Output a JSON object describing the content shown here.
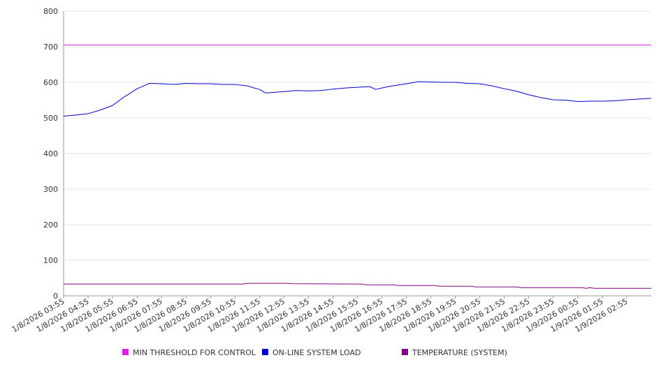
{
  "chart_data": {
    "type": "line",
    "ylim": [
      0,
      800
    ],
    "y_ticks": [
      0,
      100,
      200,
      300,
      400,
      500,
      600,
      700,
      800
    ],
    "x_range": [
      "1/8/2026 03:55",
      "1/9/2026 03:55"
    ],
    "x_tick_labels": [
      "1/8/2026 03:55",
      "1/8/2026 04:55",
      "1/8/2026 05:55",
      "1/8/2026 06:55",
      "1/8/2026 07:55",
      "1/8/2026 08:55",
      "1/8/2026 09:55",
      "1/8/2026 10:55",
      "1/8/2026 11:55",
      "1/8/2026 12:55",
      "1/8/2026 13:55",
      "1/8/2026 14:55",
      "1/8/2026 15:55",
      "1/8/2026 16:55",
      "1/8/2026 17:55",
      "1/8/2026 18:55",
      "1/8/2026 19:55",
      "1/8/2026 20:55",
      "1/8/2026 21:55",
      "1/8/2026 22:55",
      "1/8/2026 23:55",
      "1/9/2026 00:55",
      "1/9/2026 01:55",
      "1/9/2026 02:55"
    ],
    "grid": true,
    "legend_position": "bottom",
    "series": [
      {
        "name": "MIN THRESHOLD FOR CONTROL",
        "color": "#E020E0",
        "points": [
          [
            "1/8/2026 03:55",
            705
          ],
          [
            "1/9/2026 03:55",
            705
          ]
        ]
      },
      {
        "name": "ON-LINE SYSTEM LOAD",
        "color": "#0000CC",
        "points": [
          [
            "1/8/2026 03:55",
            505
          ],
          [
            "1/8/2026 04:25",
            508
          ],
          [
            "1/8/2026 04:55",
            512
          ],
          [
            "1/8/2026 05:25",
            522
          ],
          [
            "1/8/2026 05:55",
            535
          ],
          [
            "1/8/2026 06:25",
            560
          ],
          [
            "1/8/2026 06:55",
            582
          ],
          [
            "1/8/2026 07:25",
            597
          ],
          [
            "1/8/2026 07:55",
            596
          ],
          [
            "1/8/2026 08:25",
            594
          ],
          [
            "1/8/2026 08:55",
            597
          ],
          [
            "1/8/2026 09:25",
            596
          ],
          [
            "1/8/2026 09:55",
            596
          ],
          [
            "1/8/2026 10:25",
            594
          ],
          [
            "1/8/2026 10:55",
            594
          ],
          [
            "1/8/2026 11:25",
            590
          ],
          [
            "1/8/2026 11:55",
            580
          ],
          [
            "1/8/2026 12:10",
            570
          ],
          [
            "1/8/2026 12:55",
            574
          ],
          [
            "1/8/2026 13:25",
            577
          ],
          [
            "1/8/2026 13:55",
            576
          ],
          [
            "1/8/2026 14:25",
            577
          ],
          [
            "1/8/2026 14:55",
            581
          ],
          [
            "1/8/2026 15:25",
            584
          ],
          [
            "1/8/2026 15:55",
            586
          ],
          [
            "1/8/2026 16:25",
            588
          ],
          [
            "1/8/2026 16:40",
            580
          ],
          [
            "1/8/2026 17:10",
            588
          ],
          [
            "1/8/2026 17:55",
            596
          ],
          [
            "1/8/2026 18:25",
            602
          ],
          [
            "1/8/2026 18:55",
            601
          ],
          [
            "1/8/2026 19:25",
            600
          ],
          [
            "1/8/2026 19:55",
            600
          ],
          [
            "1/8/2026 20:25",
            597
          ],
          [
            "1/8/2026 20:55",
            596
          ],
          [
            "1/8/2026 21:25",
            590
          ],
          [
            "1/8/2026 21:55",
            582
          ],
          [
            "1/8/2026 22:25",
            575
          ],
          [
            "1/8/2026 22:55",
            565
          ],
          [
            "1/8/2026 23:25",
            557
          ],
          [
            "1/8/2026 23:55",
            551
          ],
          [
            "1/9/2026 00:25",
            550
          ],
          [
            "1/9/2026 00:55",
            546
          ],
          [
            "1/9/2026 01:25",
            547
          ],
          [
            "1/9/2026 01:55",
            547
          ],
          [
            "1/9/2026 02:25",
            548
          ],
          [
            "1/9/2026 02:55",
            551
          ],
          [
            "1/9/2026 03:25",
            553
          ],
          [
            "1/9/2026 03:55",
            555
          ]
        ]
      },
      {
        "name": "TEMPERATURE (SYSTEM)",
        "color": "#800080",
        "points": [
          [
            "1/8/2026 03:55",
            33
          ],
          [
            "1/8/2026 11:15",
            33
          ],
          [
            "1/8/2026 11:25",
            35
          ],
          [
            "1/8/2026 13:05",
            35
          ],
          [
            "1/8/2026 13:15",
            34
          ],
          [
            "1/8/2026 16:05",
            33
          ],
          [
            "1/8/2026 16:15",
            31
          ],
          [
            "1/8/2026 17:25",
            31
          ],
          [
            "1/8/2026 17:35",
            29
          ],
          [
            "1/8/2026 19:05",
            29
          ],
          [
            "1/8/2026 19:15",
            27
          ],
          [
            "1/8/2026 20:35",
            27
          ],
          [
            "1/8/2026 20:45",
            25
          ],
          [
            "1/8/2026 22:25",
            25
          ],
          [
            "1/8/2026 22:35",
            23
          ],
          [
            "1/9/2026 01:05",
            23
          ],
          [
            "1/9/2026 01:15",
            21
          ],
          [
            "1/9/2026 01:25",
            23
          ],
          [
            "1/9/2026 01:35",
            21
          ],
          [
            "1/9/2026 03:55",
            21
          ]
        ]
      }
    ]
  }
}
